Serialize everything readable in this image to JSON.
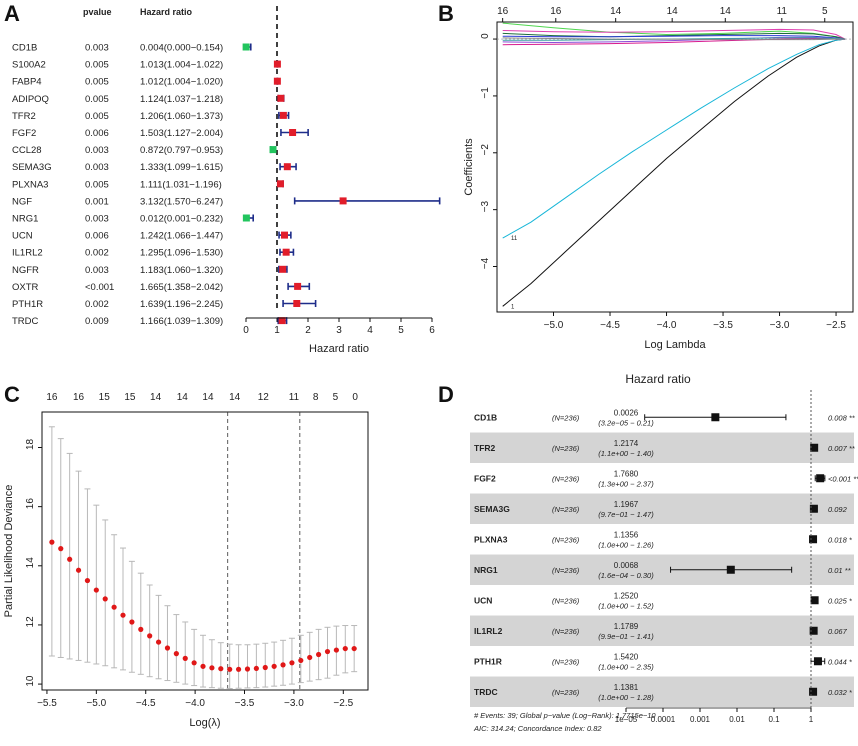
{
  "chart_data": [
    {
      "panel": "A",
      "type": "forest",
      "headers": {
        "pvalue": "pvalue",
        "hr": "Hazard ratio"
      },
      "xlabel": "Hazard ratio",
      "xlim": [
        0,
        6
      ],
      "xticks": [
        "0",
        "1",
        "2",
        "3",
        "4",
        "5",
        "6"
      ],
      "reference_line": 1,
      "rows": [
        {
          "gene": "CD1B",
          "pvalue": "0.003",
          "hr_text": "0.004(0.000−0.154)",
          "hr": 0.004,
          "lo": 0.0,
          "hi": 0.154,
          "color": "#22c55e"
        },
        {
          "gene": "S100A2",
          "pvalue": "0.005",
          "hr_text": "1.013(1.004−1.022)",
          "hr": 1.013,
          "lo": 1.004,
          "hi": 1.022,
          "color": "#e11d2a"
        },
        {
          "gene": "FABP4",
          "pvalue": "0.005",
          "hr_text": "1.012(1.004−1.020)",
          "hr": 1.012,
          "lo": 1.004,
          "hi": 1.02,
          "color": "#e11d2a"
        },
        {
          "gene": "ADIPOQ",
          "pvalue": "0.005",
          "hr_text": "1.124(1.037−1.218)",
          "hr": 1.124,
          "lo": 1.037,
          "hi": 1.218,
          "color": "#e11d2a"
        },
        {
          "gene": "TFR2",
          "pvalue": "0.005",
          "hr_text": "1.206(1.060−1.373)",
          "hr": 1.206,
          "lo": 1.06,
          "hi": 1.373,
          "color": "#e11d2a"
        },
        {
          "gene": "FGF2",
          "pvalue": "0.006",
          "hr_text": "1.503(1.127−2.004)",
          "hr": 1.503,
          "lo": 1.127,
          "hi": 2.004,
          "color": "#e11d2a"
        },
        {
          "gene": "CCL28",
          "pvalue": "0.003",
          "hr_text": "0.872(0.797−0.953)",
          "hr": 0.872,
          "lo": 0.797,
          "hi": 0.953,
          "color": "#22c55e"
        },
        {
          "gene": "SEMA3G",
          "pvalue": "0.003",
          "hr_text": "1.333(1.099−1.615)",
          "hr": 1.333,
          "lo": 1.099,
          "hi": 1.615,
          "color": "#e11d2a"
        },
        {
          "gene": "PLXNA3",
          "pvalue": "0.005",
          "hr_text": "1.111(1.031−1.196)",
          "hr": 1.111,
          "lo": 1.031,
          "hi": 1.196,
          "color": "#e11d2a"
        },
        {
          "gene": "NGF",
          "pvalue": "0.001",
          "hr_text": "3.132(1.570−6.247)",
          "hr": 3.132,
          "lo": 1.57,
          "hi": 6.247,
          "color": "#e11d2a"
        },
        {
          "gene": "NRG1",
          "pvalue": "0.003",
          "hr_text": "0.012(0.001−0.232)",
          "hr": 0.012,
          "lo": 0.001,
          "hi": 0.232,
          "color": "#22c55e"
        },
        {
          "gene": "UCN",
          "pvalue": "0.006",
          "hr_text": "1.242(1.066−1.447)",
          "hr": 1.242,
          "lo": 1.066,
          "hi": 1.447,
          "color": "#e11d2a"
        },
        {
          "gene": "IL1RL2",
          "pvalue": "0.002",
          "hr_text": "1.295(1.096−1.530)",
          "hr": 1.295,
          "lo": 1.096,
          "hi": 1.53,
          "color": "#e11d2a"
        },
        {
          "gene": "NGFR",
          "pvalue": "0.003",
          "hr_text": "1.183(1.060−1.320)",
          "hr": 1.183,
          "lo": 1.06,
          "hi": 1.32,
          "color": "#e11d2a"
        },
        {
          "gene": "OXTR",
          "pvalue": "<0.001",
          "hr_text": "1.665(1.358−2.042)",
          "hr": 1.665,
          "lo": 1.358,
          "hi": 2.042,
          "color": "#e11d2a"
        },
        {
          "gene": "PTH1R",
          "pvalue": "0.002",
          "hr_text": "1.639(1.196−2.245)",
          "hr": 1.639,
          "lo": 1.196,
          "hi": 2.245,
          "color": "#e11d2a"
        },
        {
          "gene": "TRDC",
          "pvalue": "0.009",
          "hr_text": "1.166(1.039−1.309)",
          "hr": 1.166,
          "lo": 1.039,
          "hi": 1.309,
          "color": "#e11d2a"
        }
      ]
    },
    {
      "panel": "B",
      "type": "line",
      "xlabel": "Log Lambda",
      "ylabel": "Coefficients",
      "xlim": [
        -5.5,
        -2.35
      ],
      "ylim": [
        -4.8,
        0.3
      ],
      "xticks": [
        -5.0,
        -4.5,
        -4.0,
        -3.5,
        -3.0,
        -2.5
      ],
      "xtick_labels": [
        "−5.0",
        "−4.5",
        "−4.0",
        "−3.5",
        "−3.0",
        "−2.5"
      ],
      "yticks": [
        0,
        -1,
        -2,
        -3,
        -4
      ],
      "ytick_labels": [
        "0",
        "−1",
        "−2",
        "−3",
        "−4"
      ],
      "top_ticks": [
        {
          "x": -5.45,
          "label": "16"
        },
        {
          "x": -4.98,
          "label": "16"
        },
        {
          "x": -4.45,
          "label": "14"
        },
        {
          "x": -3.95,
          "label": "14"
        },
        {
          "x": -3.48,
          "label": "14"
        },
        {
          "x": -2.98,
          "label": "11"
        },
        {
          "x": -2.6,
          "label": "5"
        }
      ],
      "curve_labels": [
        {
          "text": "11",
          "y": -3.5
        },
        {
          "text": "1",
          "y": -4.7
        }
      ],
      "series": [
        {
          "name": "black",
          "color": "#111111",
          "x": [
            -5.45,
            -5.2,
            -4.9,
            -4.6,
            -4.3,
            -4.0,
            -3.7,
            -3.4,
            -3.1,
            -2.85,
            -2.65,
            -2.5,
            -2.42
          ],
          "y": [
            -4.7,
            -4.3,
            -3.75,
            -3.2,
            -2.65,
            -2.1,
            -1.6,
            -1.1,
            -0.65,
            -0.32,
            -0.12,
            -0.02,
            0
          ]
        },
        {
          "name": "cyan",
          "color": "#17b6d8",
          "x": [
            -5.45,
            -5.2,
            -4.9,
            -4.6,
            -4.3,
            -4.0,
            -3.7,
            -3.4,
            -3.1,
            -2.85,
            -2.65,
            -2.5,
            -2.42
          ],
          "y": [
            -3.5,
            -3.22,
            -2.8,
            -2.38,
            -1.98,
            -1.6,
            -1.22,
            -0.86,
            -0.52,
            -0.27,
            -0.1,
            -0.02,
            0
          ]
        },
        {
          "name": "green",
          "color": "#4fd64f",
          "x": [
            -5.45,
            -5.0,
            -4.5,
            -4.0,
            -3.5,
            -3.0,
            -2.7,
            -2.5,
            -2.42
          ],
          "y": [
            0.28,
            0.2,
            0.12,
            0.08,
            0.1,
            0.14,
            0.1,
            0.04,
            0
          ]
        },
        {
          "name": "pink",
          "color": "#e040b0",
          "x": [
            -5.45,
            -5.0,
            -4.5,
            -4.0,
            -3.5,
            -3.0,
            -2.7,
            -2.5,
            -2.42
          ],
          "y": [
            0.15,
            0.13,
            0.12,
            0.13,
            0.15,
            0.17,
            0.16,
            0.08,
            0
          ]
        },
        {
          "name": "darkgreen",
          "color": "#1f6b3b",
          "x": [
            -5.45,
            -5.0,
            -4.5,
            -4.0,
            -3.5,
            -3.0,
            -2.7,
            -2.5,
            -2.42
          ],
          "y": [
            0.1,
            0.06,
            0.04,
            0.06,
            0.08,
            0.1,
            0.09,
            0.04,
            0
          ]
        },
        {
          "name": "blue",
          "color": "#2b3bd6",
          "x": [
            -5.45,
            -5.0,
            -4.5,
            -4.0,
            -3.5,
            -3.0,
            -2.7,
            -2.5,
            -2.42
          ],
          "y": [
            0.05,
            0.04,
            0.04,
            0.05,
            0.06,
            0.06,
            0.05,
            0.02,
            0
          ]
        },
        {
          "name": "purple",
          "color": "#8a4fd8",
          "x": [
            -5.45,
            -5.0,
            -4.5,
            -4.0,
            -3.5,
            -3.0,
            -2.7,
            -2.5,
            -2.42
          ],
          "y": [
            -0.05,
            -0.06,
            -0.05,
            -0.03,
            0.0,
            0.03,
            0.03,
            0.01,
            0
          ]
        },
        {
          "name": "magenta",
          "color": "#d81b8f",
          "x": [
            -5.45,
            -5.0,
            -4.5,
            -4.0,
            -3.5,
            -3.0,
            -2.7,
            -2.5,
            -2.42
          ],
          "y": [
            -0.1,
            -0.09,
            -0.08,
            -0.06,
            -0.03,
            0.0,
            0.01,
            0.0,
            0
          ]
        },
        {
          "name": "teal",
          "color": "#3aa0a0",
          "x": [
            -5.45,
            -5.0,
            -4.5,
            -4.0,
            -3.5,
            -3.0,
            -2.7,
            -2.5,
            -2.42
          ],
          "y": [
            -0.02,
            -0.02,
            -0.01,
            0.0,
            0.01,
            0.02,
            0.02,
            0.01,
            0
          ]
        },
        {
          "name": "grey",
          "color": "#888888",
          "x": [
            -5.45,
            -5.0,
            -4.5,
            -4.0,
            -3.5,
            -3.0,
            -2.7,
            -2.5,
            -2.42
          ],
          "y": [
            0.02,
            0.01,
            0.0,
            0.0,
            -0.01,
            -0.01,
            -0.01,
            0.0,
            0
          ]
        }
      ]
    },
    {
      "panel": "C",
      "type": "errorbar",
      "xlabel": "Log(λ)",
      "ylabel": "Partial Likelihood Deviance",
      "xlim": [
        -5.55,
        -2.25
      ],
      "ylim": [
        9.8,
        19.2
      ],
      "xticks": [
        -5.5,
        -5.0,
        -4.5,
        -4.0,
        -3.5,
        -3.0,
        -2.5
      ],
      "xtick_labels": [
        "−5.5",
        "−5.0",
        "−4.5",
        "−4.0",
        "−3.5",
        "−3.0",
        "−2.5"
      ],
      "yticks": [
        10,
        12,
        14,
        16,
        18
      ],
      "ytick_labels": [
        "10",
        "12",
        "14",
        "16",
        "18"
      ],
      "vlines": [
        -3.67,
        -2.94
      ],
      "top_ticks": [
        {
          "x": -5.45,
          "label": "16"
        },
        {
          "x": -5.18,
          "label": "16"
        },
        {
          "x": -4.92,
          "label": "15"
        },
        {
          "x": -4.66,
          "label": "15"
        },
        {
          "x": -4.4,
          "label": "14"
        },
        {
          "x": -4.13,
          "label": "14"
        },
        {
          "x": -3.87,
          "label": "14"
        },
        {
          "x": -3.6,
          "label": "14"
        },
        {
          "x": -3.31,
          "label": "12"
        },
        {
          "x": -3.0,
          "label": "11"
        },
        {
          "x": -2.78,
          "label": "8"
        },
        {
          "x": -2.58,
          "label": "5"
        },
        {
          "x": -2.38,
          "label": "0"
        }
      ],
      "x": [
        -5.45,
        -5.36,
        -5.27,
        -5.18,
        -5.09,
        -5.0,
        -4.91,
        -4.82,
        -4.73,
        -4.64,
        -4.55,
        -4.46,
        -4.37,
        -4.28,
        -4.19,
        -4.1,
        -4.01,
        -3.92,
        -3.83,
        -3.74,
        -3.65,
        -3.56,
        -3.47,
        -3.38,
        -3.29,
        -3.2,
        -3.11,
        -3.02,
        -2.93,
        -2.84,
        -2.75,
        -2.66,
        -2.57,
        -2.48,
        -2.39
      ],
      "mean": [
        14.8,
        14.58,
        14.22,
        13.85,
        13.5,
        13.18,
        12.88,
        12.6,
        12.33,
        12.1,
        11.85,
        11.63,
        11.42,
        11.22,
        11.03,
        10.87,
        10.72,
        10.6,
        10.55,
        10.52,
        10.5,
        10.5,
        10.51,
        10.53,
        10.56,
        10.6,
        10.65,
        10.72,
        10.8,
        10.9,
        11.0,
        11.1,
        11.15,
        11.2,
        11.2
      ],
      "upper": [
        18.7,
        18.3,
        17.8,
        17.2,
        16.6,
        16.05,
        15.55,
        15.05,
        14.6,
        14.15,
        13.75,
        13.35,
        13.0,
        12.65,
        12.35,
        12.1,
        11.85,
        11.65,
        11.5,
        11.4,
        11.35,
        11.33,
        11.33,
        11.35,
        11.38,
        11.42,
        11.48,
        11.55,
        11.65,
        11.75,
        11.85,
        11.92,
        11.96,
        11.98,
        11.98
      ],
      "lower": [
        10.95,
        10.9,
        10.85,
        10.8,
        10.74,
        10.68,
        10.62,
        10.55,
        10.48,
        10.4,
        10.33,
        10.25,
        10.18,
        10.12,
        10.06,
        10.0,
        9.95,
        9.9,
        9.88,
        9.86,
        9.85,
        9.86,
        9.87,
        9.88,
        9.9,
        9.93,
        9.96,
        10.0,
        10.05,
        10.1,
        10.15,
        10.2,
        10.3,
        10.38,
        10.42
      ]
    },
    {
      "panel": "D",
      "type": "forest",
      "title": "Hazard ratio",
      "scale": "log",
      "xlim": [
        1e-05,
        1
      ],
      "xticks": [
        1e-05,
        0.0001,
        0.001,
        0.01,
        0.1,
        1
      ],
      "xtick_labels": [
        "1e−05",
        "0.0001",
        "0.001",
        "0.01",
        "0.1",
        "1"
      ],
      "reference_line": 1,
      "footnotes": [
        "# Events: 39; Global p−value (Log−Rank): 1.7715e−10",
        "AIC: 314.24; Concordance Index: 0.82"
      ],
      "rows": [
        {
          "gene": "CD1B",
          "n": "(N=236)",
          "hr_text": "0.0026",
          "ci_text": "(3.2e−05 − 0.21)",
          "p_text": "0.008 **",
          "hr": 0.0026,
          "lo": 3.2e-05,
          "hi": 0.21
        },
        {
          "gene": "TFR2",
          "n": "(N=236)",
          "hr_text": "1.2174",
          "ci_text": "(1.1e+00 − 1.40)",
          "p_text": "0.007 **",
          "hr": 1.2174,
          "lo": 1.1,
          "hi": 1.4
        },
        {
          "gene": "FGF2",
          "n": "(N=236)",
          "hr_text": "1.7680",
          "ci_text": "(1.3e+00 − 2.37)",
          "p_text": "<0.001 ***",
          "hr": 1.768,
          "lo": 1.3,
          "hi": 2.37
        },
        {
          "gene": "SEMA3G",
          "n": "(N=236)",
          "hr_text": "1.1967",
          "ci_text": "(9.7e−01 − 1.47)",
          "p_text": "0.092",
          "hr": 1.1967,
          "lo": 0.97,
          "hi": 1.47
        },
        {
          "gene": "PLXNA3",
          "n": "(N=236)",
          "hr_text": "1.1356",
          "ci_text": "(1.0e+00 − 1.26)",
          "p_text": "0.018 *",
          "hr": 1.1356,
          "lo": 1.0,
          "hi": 1.26
        },
        {
          "gene": "NRG1",
          "n": "(N=236)",
          "hr_text": "0.0068",
          "ci_text": "(1.6e−04 − 0.30)",
          "p_text": "0.01 **",
          "hr": 0.0068,
          "lo": 0.00016,
          "hi": 0.3
        },
        {
          "gene": "UCN",
          "n": "(N=236)",
          "hr_text": "1.2520",
          "ci_text": "(1.0e+00 − 1.52)",
          "p_text": "0.025 *",
          "hr": 1.252,
          "lo": 1.0,
          "hi": 1.52
        },
        {
          "gene": "IL1RL2",
          "n": "(N=236)",
          "hr_text": "1.1789",
          "ci_text": "(9.9e−01 − 1.41)",
          "p_text": "0.067",
          "hr": 1.1789,
          "lo": 0.99,
          "hi": 1.41
        },
        {
          "gene": "PTH1R",
          "n": "(N=236)",
          "hr_text": "1.5420",
          "ci_text": "(1.0e+00 − 2.35)",
          "p_text": "0.044 *",
          "hr": 1.542,
          "lo": 1.0,
          "hi": 2.35
        },
        {
          "gene": "TRDC",
          "n": "(N=236)",
          "hr_text": "1.1381",
          "ci_text": "(1.0e+00 − 1.28)",
          "p_text": "0.032 *",
          "hr": 1.1381,
          "lo": 1.0,
          "hi": 1.28
        }
      ]
    }
  ]
}
